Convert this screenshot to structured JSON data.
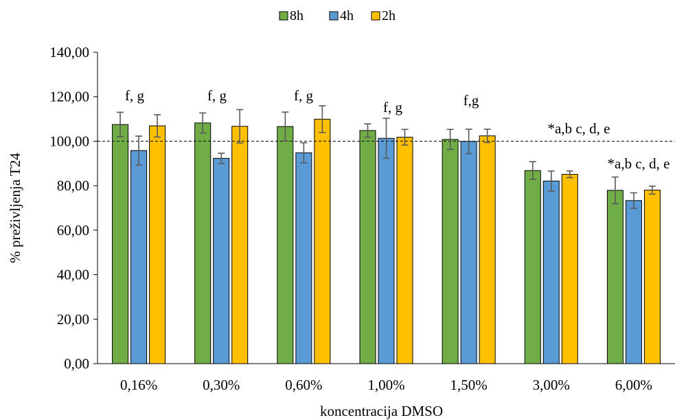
{
  "chart_data": {
    "type": "bar",
    "title": "",
    "xlabel": "koncentracija DMSO",
    "ylabel": "% preživljenja T24",
    "ylim": [
      0,
      140
    ],
    "yticks": [
      "0,00",
      "20,00",
      "40,00",
      "60,00",
      "80,00",
      "100,00",
      "120,00",
      "140,00"
    ],
    "categories": [
      "0,16%",
      "0,30%",
      "0,60%",
      "1,00%",
      "1,50%",
      "3,00%",
      "6,00%"
    ],
    "series": [
      {
        "name": "8h",
        "color": "#70AD47",
        "values": [
          107.5,
          108.2,
          106.6,
          104.8,
          100.8,
          86.8,
          77.9
        ],
        "errors": [
          5.5,
          4.5,
          6.5,
          3.0,
          4.5,
          4.0,
          6.0
        ]
      },
      {
        "name": "4h",
        "color": "#5B9BD5",
        "values": [
          95.8,
          92.3,
          94.8,
          101.3,
          99.9,
          82.1,
          73.3
        ],
        "errors": [
          6.5,
          2.3,
          4.5,
          9.0,
          5.5,
          4.5,
          3.5
        ]
      },
      {
        "name": "2h",
        "color": "#FFC000",
        "values": [
          106.9,
          106.7,
          109.9,
          101.8,
          102.4,
          85.1,
          78.0
        ],
        "errors": [
          5.0,
          7.5,
          6.0,
          3.5,
          3.0,
          1.5,
          1.8
        ]
      }
    ],
    "reference_line": {
      "value": 100,
      "style": "dashed"
    },
    "annotations": [
      "f, g",
      "f, g",
      "f, g",
      "f, g",
      "f,g",
      "*a,b c, d, e",
      "*a,b c, d, e"
    ],
    "legend_position": "top-center",
    "grid": false
  }
}
